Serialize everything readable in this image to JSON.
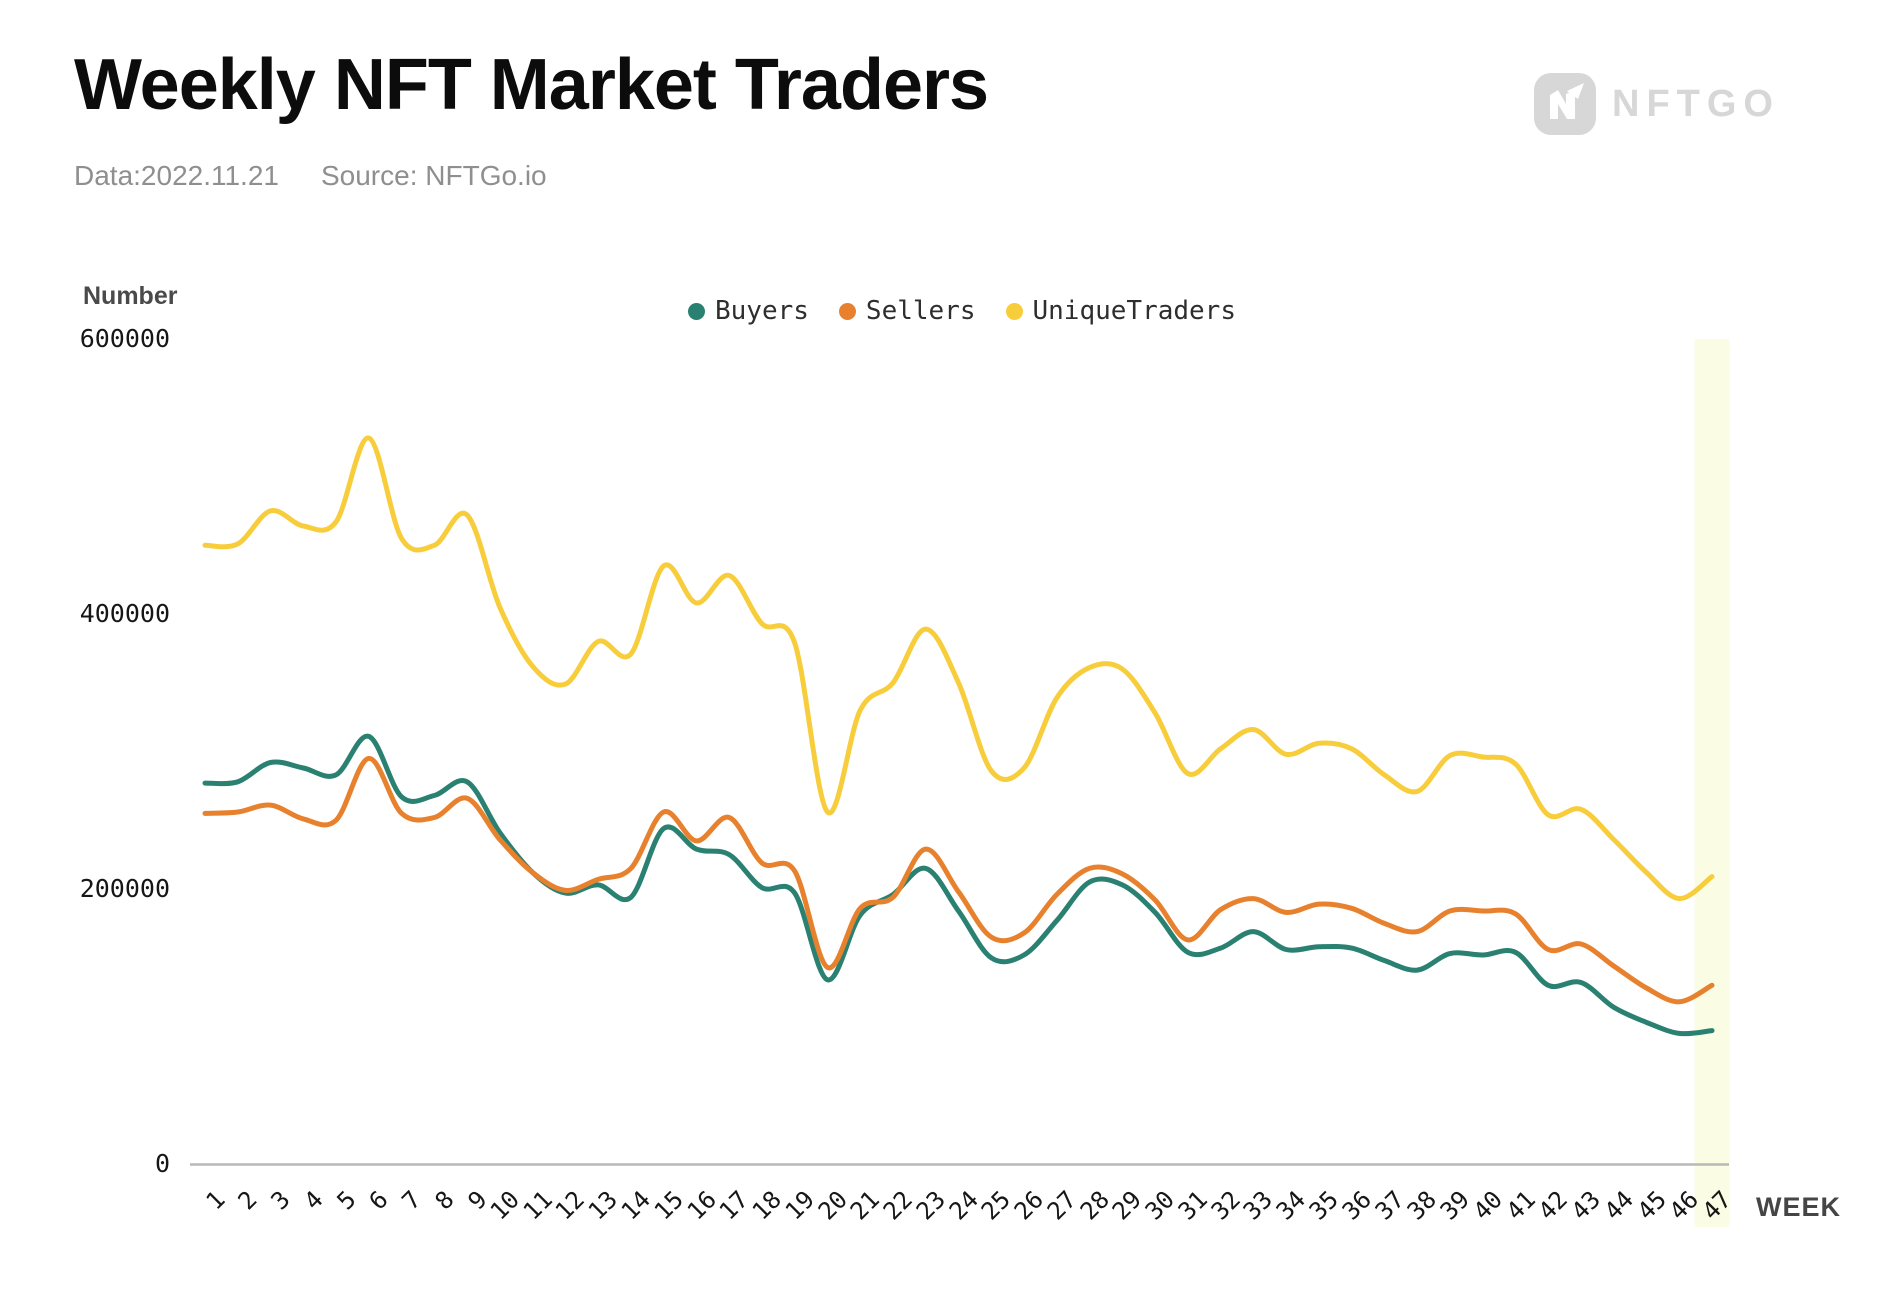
{
  "header": {
    "title": "Weekly NFT Market Traders",
    "date_label": "Data:2022.11.21",
    "source_label": "Source: NFTGo.io",
    "logo_text": "NFTGO"
  },
  "axis": {
    "y_title": "Number",
    "x_title": "WEEK"
  },
  "colors": {
    "buyers": "#2a8172",
    "sellers": "#e8812d",
    "unique_traders": "#f8cd3c",
    "highlight_band": "#fbfce4",
    "axis_line": "#b8b8b8"
  },
  "chart_data": {
    "type": "line",
    "smooth": true,
    "title": "Weekly NFT Market Traders",
    "xlabel": "WEEK",
    "ylabel": "Number",
    "ylim": [
      0,
      600000
    ],
    "yticks": [
      600000,
      400000,
      200000,
      0
    ],
    "grid": false,
    "legend_position": "top-center",
    "highlight_week": 47,
    "x": [
      1,
      2,
      3,
      4,
      5,
      6,
      7,
      8,
      9,
      10,
      11,
      12,
      13,
      14,
      15,
      16,
      17,
      18,
      19,
      20,
      21,
      22,
      23,
      24,
      25,
      26,
      27,
      28,
      29,
      30,
      31,
      32,
      33,
      34,
      35,
      36,
      37,
      38,
      39,
      40,
      41,
      42,
      43,
      44,
      45,
      46,
      47
    ],
    "series": [
      {
        "name": "Buyers",
        "color": "#2a8172",
        "values": [
          277000,
          278000,
          292000,
          288000,
          283000,
          311000,
          267000,
          268000,
          278000,
          241000,
          212000,
          197000,
          203000,
          194000,
          244000,
          229000,
          225000,
          201000,
          197000,
          134000,
          181000,
          196000,
          215000,
          184000,
          150000,
          152000,
          177000,
          205000,
          203000,
          183000,
          154000,
          157000,
          169000,
          156000,
          158000,
          157000,
          148000,
          141000,
          153000,
          152000,
          154000,
          130000,
          132000,
          114000,
          103000,
          95000,
          97000
        ]
      },
      {
        "name": "Sellers",
        "color": "#e8812d",
        "values": [
          255000,
          256000,
          261000,
          251000,
          250000,
          295000,
          255000,
          252000,
          266000,
          236000,
          212000,
          199000,
          207000,
          215000,
          256000,
          235000,
          252000,
          219000,
          213000,
          143000,
          186000,
          194000,
          229000,
          198000,
          165000,
          168000,
          196000,
          215000,
          211000,
          192000,
          163000,
          185000,
          193000,
          183000,
          189000,
          186000,
          175000,
          169000,
          184000,
          184000,
          182000,
          156000,
          160000,
          144000,
          128000,
          118000,
          130000
        ]
      },
      {
        "name": "UniqueTraders",
        "color": "#f8cd3c",
        "values": [
          450000,
          451000,
          475000,
          464000,
          467000,
          528000,
          455000,
          450000,
          472000,
          405000,
          362000,
          349000,
          380000,
          371000,
          435000,
          408000,
          428000,
          393000,
          379000,
          256000,
          330000,
          350000,
          389000,
          350000,
          286000,
          288000,
          339000,
          361000,
          360000,
          328000,
          284000,
          302000,
          316000,
          298000,
          306000,
          302000,
          283000,
          271000,
          297000,
          296000,
          291000,
          254000,
          258000,
          236000,
          212000,
          193000,
          209000
        ]
      }
    ]
  }
}
